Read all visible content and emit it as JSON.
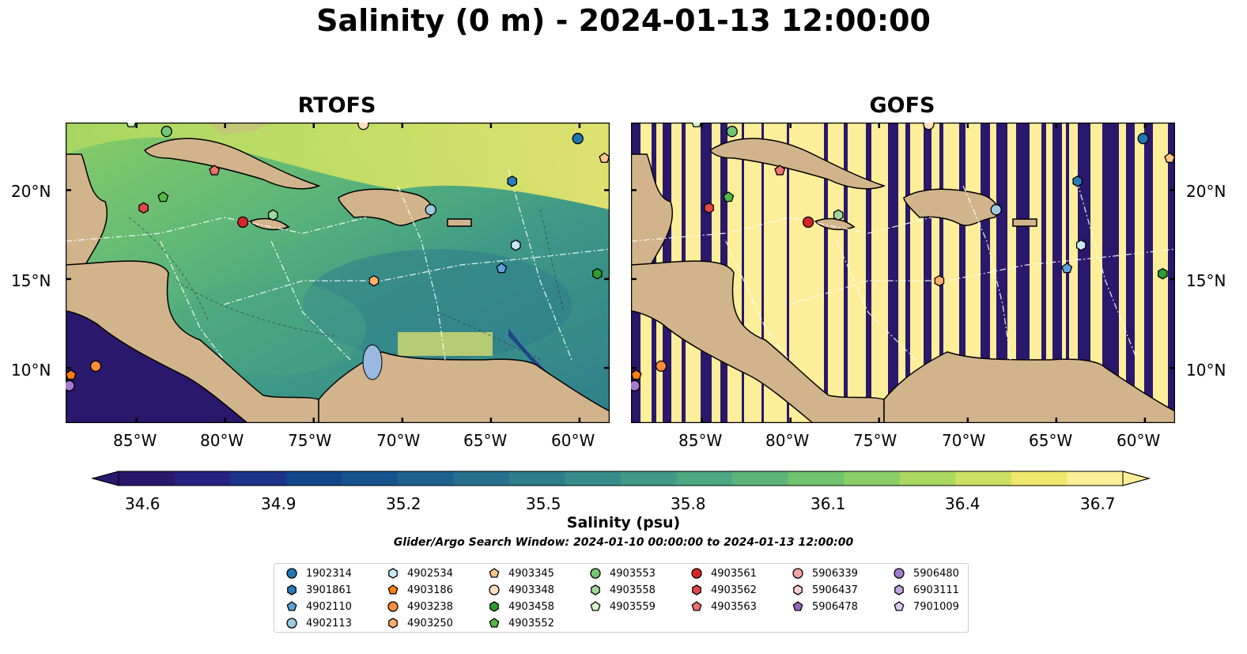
{
  "title": "Salinity (0 m) - 2024-01-13 12:00:00",
  "panels": [
    {
      "title": "RTOFS"
    },
    {
      "title": "GOFS"
    }
  ],
  "axes": {
    "x_ticks": [
      "85°W",
      "80°W",
      "75°W",
      "70°W",
      "65°W",
      "60°W"
    ],
    "x_tick_values": [
      -85,
      -80,
      -75,
      -70,
      -65,
      -60
    ],
    "y_ticks": [
      "20°N",
      "15°N",
      "10°N"
    ],
    "y_tick_values": [
      20,
      15,
      10
    ],
    "lon_range": [
      -89,
      -58.3
    ],
    "lat_range": [
      6.9,
      23.8
    ]
  },
  "colorbar": {
    "label": "Salinity (psu)",
    "ticks": [
      "34.6",
      "34.9",
      "35.2",
      "35.5",
      "35.8",
      "36.1",
      "36.4",
      "36.7"
    ],
    "range": [
      34.6,
      36.7
    ],
    "extend": "both",
    "colormap": "haline",
    "colors": [
      "#2a186c",
      "#26227f",
      "#1d3387",
      "#12458b",
      "#14538d",
      "#1d628e",
      "#26708d",
      "#2e7e8c",
      "#368c8a",
      "#3f9a86",
      "#4ba881",
      "#5bb579",
      "#70c26f",
      "#8ace66",
      "#aad861",
      "#cce164",
      "#f0e86c",
      "#fdee99"
    ]
  },
  "search_window": "Glider/Argo Search Window: 2024-01-10 00:00:00 to 2024-01-13 12:00:00",
  "legend": {
    "columns": [
      [
        {
          "id": "1902314",
          "marker": "circle",
          "color": "#1f77b4"
        },
        {
          "id": "3901861",
          "marker": "hexagon",
          "color": "#2b7bba"
        },
        {
          "id": "4902110",
          "marker": "pentagon",
          "color": "#5aa2d9"
        },
        {
          "id": "4902113",
          "marker": "circle",
          "color": "#9ecae1"
        }
      ],
      [
        {
          "id": "4902534",
          "marker": "hexagon",
          "color": "#c6e8f7"
        },
        {
          "id": "4903186",
          "marker": "pentagon",
          "color": "#ff7f0e"
        },
        {
          "id": "4903238",
          "marker": "circle",
          "color": "#fd8d3c"
        },
        {
          "id": "4903250",
          "marker": "hexagon",
          "color": "#fdae6b"
        }
      ],
      [
        {
          "id": "4903345",
          "marker": "pentagon",
          "color": "#fdc58c"
        },
        {
          "id": "4903348",
          "marker": "circle",
          "color": "#fee0c0"
        },
        {
          "id": "4903458",
          "marker": "hexagon",
          "color": "#2ca02c"
        },
        {
          "id": "4903552",
          "marker": "pentagon",
          "color": "#54b848"
        }
      ],
      [
        {
          "id": "4903553",
          "marker": "circle",
          "color": "#74c476"
        },
        {
          "id": "4903558",
          "marker": "hexagon",
          "color": "#a1d99b"
        },
        {
          "id": "4903559",
          "marker": "pentagon",
          "color": "#d4f5c9"
        }
      ],
      [
        {
          "id": "4903561",
          "marker": "circle",
          "color": "#d62728"
        },
        {
          "id": "4903562",
          "marker": "hexagon",
          "color": "#e0474c"
        },
        {
          "id": "4903563",
          "marker": "pentagon",
          "color": "#f07070"
        }
      ],
      [
        {
          "id": "5906339",
          "marker": "circle",
          "color": "#f4a3a3"
        },
        {
          "id": "5906437",
          "marker": "hexagon",
          "color": "#fcd0d0"
        },
        {
          "id": "5906478",
          "marker": "pentagon",
          "color": "#9467bd"
        }
      ],
      [
        {
          "id": "5906480",
          "marker": "circle",
          "color": "#a17ccc"
        },
        {
          "id": "6903111",
          "marker": "hexagon",
          "color": "#c2a5e0"
        },
        {
          "id": "7901009",
          "marker": "pentagon",
          "color": "#dcc8f0"
        }
      ]
    ]
  },
  "floats": [
    {
      "id": "1902314",
      "lon": -60.1,
      "lat": 22.9
    },
    {
      "id": "3901861",
      "lon": -63.8,
      "lat": 20.5
    },
    {
      "id": "4902110",
      "lon": -64.4,
      "lat": 15.6
    },
    {
      "id": "4902113",
      "lon": -68.4,
      "lat": 18.9
    },
    {
      "id": "4902534",
      "lon": -63.6,
      "lat": 16.9
    },
    {
      "id": "4903186",
      "lon": -88.7,
      "lat": 9.6
    },
    {
      "id": "4903238",
      "lon": -87.3,
      "lat": 10.1
    },
    {
      "id": "4903250",
      "lon": -71.6,
      "lat": 14.9
    },
    {
      "id": "4903345",
      "lon": -58.6,
      "lat": 21.8
    },
    {
      "id": "4903348",
      "lon": -72.2,
      "lat": 23.7
    },
    {
      "id": "4903458",
      "lon": -59.0,
      "lat": 15.3
    },
    {
      "id": "4903552",
      "lon": -83.5,
      "lat": 19.6
    },
    {
      "id": "4903553",
      "lon": -83.3,
      "lat": 23.3
    },
    {
      "id": "4903558",
      "lon": -77.3,
      "lat": 18.6
    },
    {
      "id": "4903559",
      "lon": -85.3,
      "lat": 23.8
    },
    {
      "id": "4903561",
      "lon": -79.0,
      "lat": 18.2
    },
    {
      "id": "4903562",
      "lon": -84.6,
      "lat": 19.0
    },
    {
      "id": "4903563",
      "lon": -80.6,
      "lat": 21.1
    },
    {
      "id": "5906480",
      "lon": -88.8,
      "lat": 9.0
    }
  ]
}
